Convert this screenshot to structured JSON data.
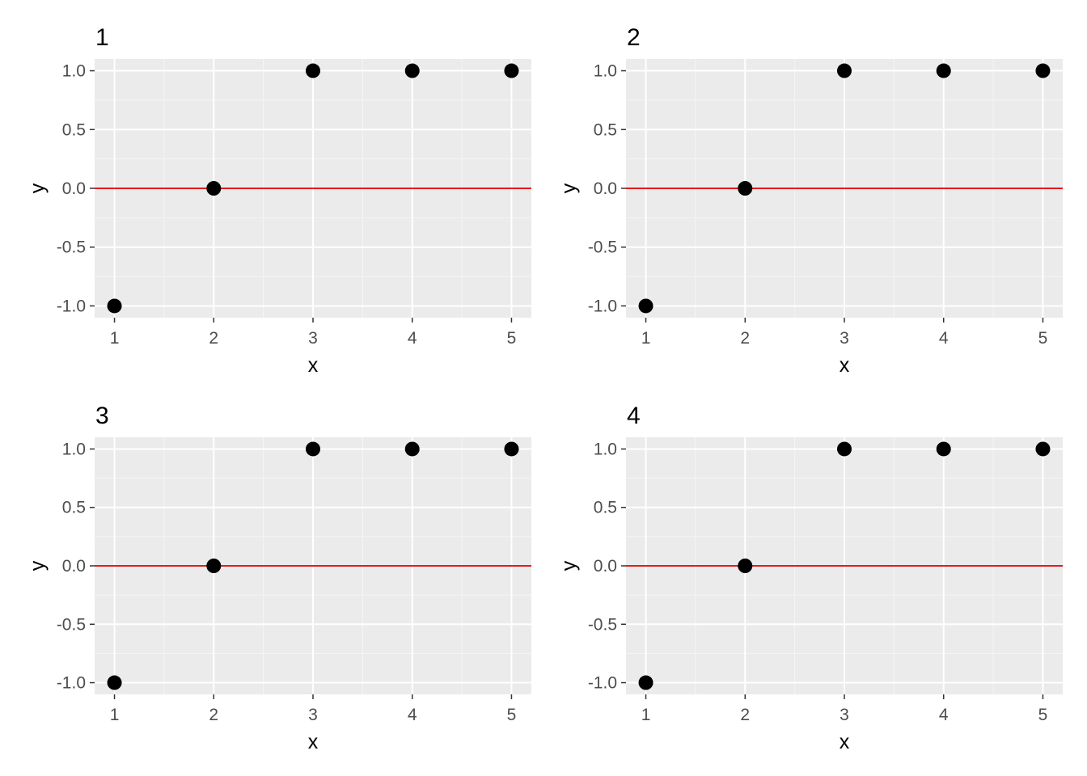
{
  "colors": {
    "panel_background": "#ebebeb",
    "major_grid": "#ffffff",
    "minor_grid": "#f5f5f5",
    "points": "#000000",
    "reference_line": "#e41a1c",
    "tick_mark": "#333333",
    "tick_text": "#4d4d4d"
  },
  "chart_data": [
    {
      "type": "scatter",
      "title": "1",
      "xlabel": "x",
      "ylabel": "y",
      "x": [
        1,
        2,
        3,
        4,
        5
      ],
      "y": [
        -1,
        0,
        1,
        1,
        1
      ],
      "xticks": [
        "1",
        "2",
        "3",
        "4",
        "5"
      ],
      "yticks": [
        "-1.0",
        "-0.5",
        "0.0",
        "0.5",
        "1.0"
      ],
      "xlim": [
        0.8,
        5.2
      ],
      "ylim": [
        -1.1,
        1.1
      ],
      "hline_y": 0,
      "grid": true,
      "legend": "none"
    },
    {
      "type": "scatter",
      "title": "2",
      "xlabel": "x",
      "ylabel": "y",
      "x": [
        1,
        2,
        3,
        4,
        5
      ],
      "y": [
        -1,
        0,
        1,
        1,
        1
      ],
      "xticks": [
        "1",
        "2",
        "3",
        "4",
        "5"
      ],
      "yticks": [
        "-1.0",
        "-0.5",
        "0.0",
        "0.5",
        "1.0"
      ],
      "xlim": [
        0.8,
        5.2
      ],
      "ylim": [
        -1.1,
        1.1
      ],
      "hline_y": 0,
      "grid": true,
      "legend": "none"
    },
    {
      "type": "scatter",
      "title": "3",
      "xlabel": "x",
      "ylabel": "y",
      "x": [
        1,
        2,
        3,
        4,
        5
      ],
      "y": [
        -1,
        0,
        1,
        1,
        1
      ],
      "xticks": [
        "1",
        "2",
        "3",
        "4",
        "5"
      ],
      "yticks": [
        "-1.0",
        "-0.5",
        "0.0",
        "0.5",
        "1.0"
      ],
      "xlim": [
        0.8,
        5.2
      ],
      "ylim": [
        -1.1,
        1.1
      ],
      "hline_y": 0,
      "grid": true,
      "legend": "none"
    },
    {
      "type": "scatter",
      "title": "4",
      "xlabel": "x",
      "ylabel": "y",
      "x": [
        1,
        2,
        3,
        4,
        5
      ],
      "y": [
        -1,
        0,
        1,
        1,
        1
      ],
      "xticks": [
        "1",
        "2",
        "3",
        "4",
        "5"
      ],
      "yticks": [
        "-1.0",
        "-0.5",
        "0.0",
        "0.5",
        "1.0"
      ],
      "xlim": [
        0.8,
        5.2
      ],
      "ylim": [
        -1.1,
        1.1
      ],
      "hline_y": 0,
      "grid": true,
      "legend": "none"
    }
  ]
}
